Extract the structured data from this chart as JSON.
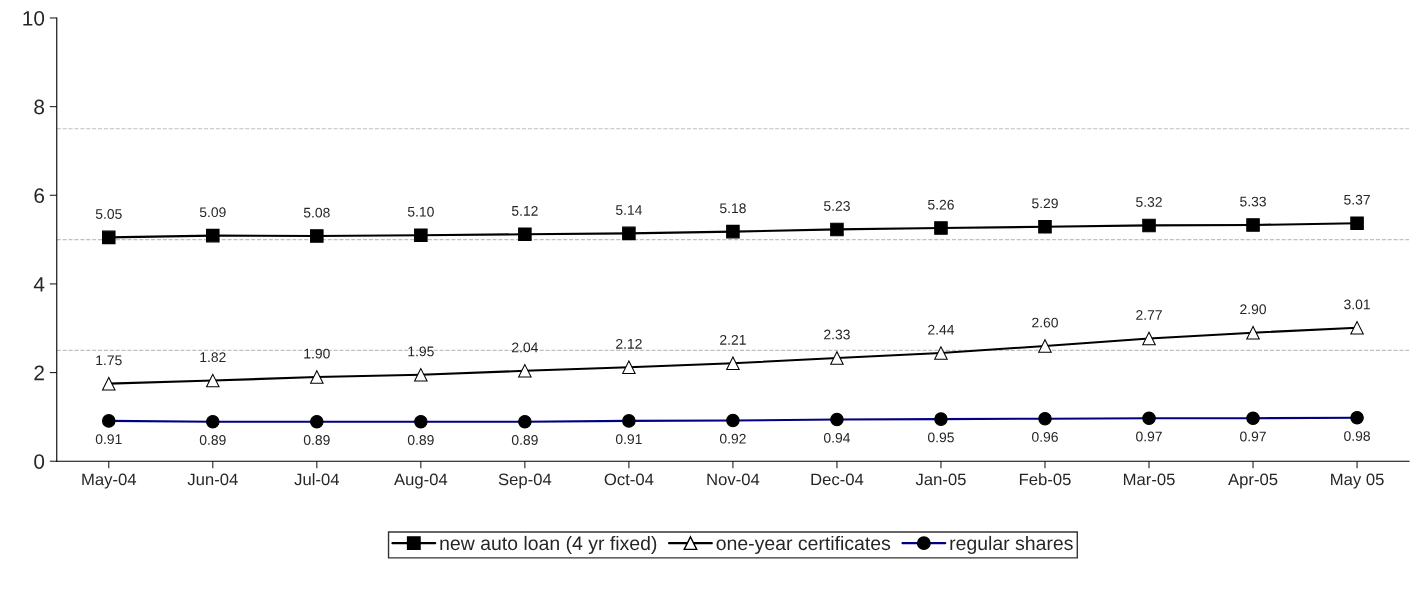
{
  "chart_data": {
    "type": "line",
    "categories": [
      "May-04",
      "Jun-04",
      "Jul-04",
      "Aug-04",
      "Sep-04",
      "Oct-04",
      "Nov-04",
      "Dec-04",
      "Jan-05",
      "Feb-05",
      "Mar-05",
      "Apr-05",
      "May 05"
    ],
    "series": [
      {
        "name": "new auto loan (4 yr fixed)",
        "color": "#000000",
        "marker": "square",
        "values": [
          5.05,
          5.09,
          5.08,
          5.1,
          5.12,
          5.14,
          5.18,
          5.23,
          5.26,
          5.29,
          5.32,
          5.33,
          5.37
        ],
        "value_labels": [
          "5.05",
          "5.09",
          "5.08",
          "5.10",
          "5.12",
          "5.14",
          "5.18",
          "5.23",
          "5.26",
          "5.29",
          "5.32",
          "5.33",
          "5.37"
        ]
      },
      {
        "name": "one-year certificates",
        "color": "#000000",
        "marker": "triangle",
        "values": [
          1.75,
          1.82,
          1.9,
          1.95,
          2.04,
          2.12,
          2.21,
          2.33,
          2.44,
          2.6,
          2.77,
          2.9,
          3.01
        ],
        "value_labels": [
          "1.75",
          "1.82",
          "1.90",
          "1.95",
          "2.04",
          "2.12",
          "2.21",
          "2.33",
          "2.44",
          "2.60",
          "2.77",
          "2.90",
          "3.01"
        ]
      },
      {
        "name": "regular shares",
        "color": "#000080",
        "marker": "circle",
        "values": [
          0.91,
          0.89,
          0.89,
          0.89,
          0.89,
          0.91,
          0.92,
          0.94,
          0.95,
          0.96,
          0.97,
          0.97,
          0.98
        ],
        "value_labels": [
          "0.91",
          "0.89",
          "0.89",
          "0.89",
          "0.89",
          "0.91",
          "0.92",
          "0.94",
          "0.95",
          "0.96",
          "0.97",
          "0.97",
          "0.98"
        ]
      }
    ],
    "ylim": [
      0,
      10
    ],
    "yticks": [
      0,
      2,
      4,
      6,
      8,
      10
    ],
    "ref_lines": [
      {
        "axis": "y",
        "value": 2.5,
        "color": "#c0c0c0",
        "line_style": "dashed"
      },
      {
        "axis": "y",
        "value": 5,
        "color": "#c0c0c0",
        "line_style": "dashed"
      },
      {
        "axis": "y",
        "value": 7.5,
        "color": "#c0c0c0",
        "line_style": "dashed"
      }
    ],
    "grid": false,
    "legend": "bottom",
    "line_style": "solid"
  }
}
